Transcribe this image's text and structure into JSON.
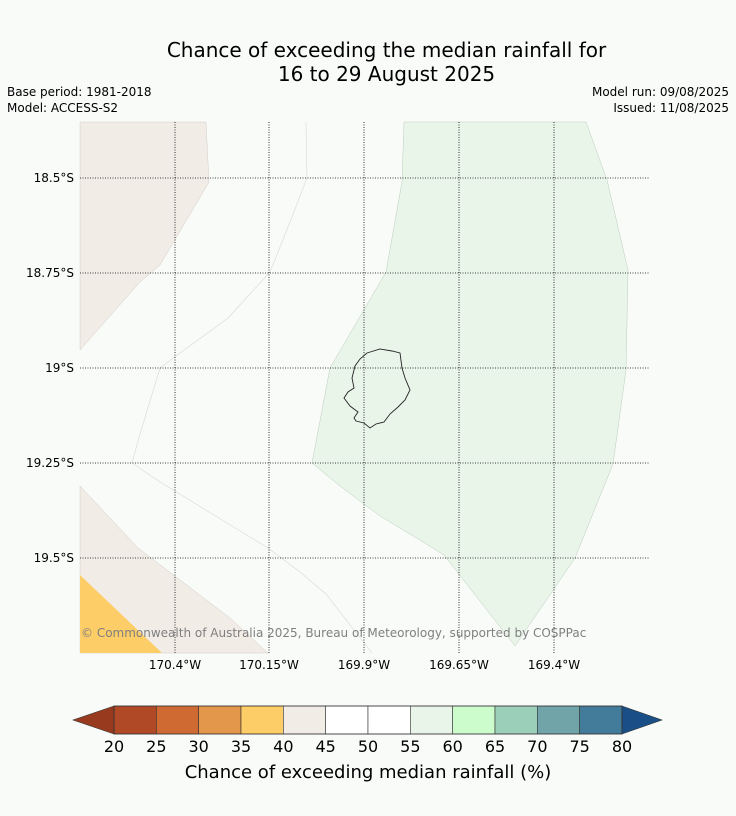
{
  "title_line1": "Chance of exceeding the median rainfall for",
  "title_line2": "16 to 29 August 2025",
  "base_period": "Base period: 1981-2018",
  "model": "Model: ACCESS-S2",
  "model_run": "Model run: 09/08/2025",
  "issued": "Issued: 11/08/2025",
  "latitudes": [
    "18.5°S",
    "18.75°S",
    "19°S",
    "19.25°S",
    "19.5°S"
  ],
  "longitudes": [
    "170.4°W",
    "170.15°W",
    "169.9°W",
    "169.65°W",
    "169.4°W"
  ],
  "copyright": "© Commonwealth of Australia 2025, Bureau of Meteorology, supported by COSPPac",
  "colorbar": {
    "title": "Chance of exceeding median rainfall (%)",
    "ticks": [
      "20",
      "25",
      "30",
      "35",
      "40",
      "45",
      "50",
      "55",
      "60",
      "65",
      "70",
      "75",
      "80"
    ],
    "colors": [
      "#b04a26",
      "#cf6a33",
      "#e3974b",
      "#fdcd67",
      "#f1ece6",
      "#ffffff",
      "#ffffff",
      "#eaf5ea",
      "#ccfbcc",
      "#9ccfb9",
      "#70a4a8",
      "#437b9b"
    ],
    "low_extend_color": "#983a1e",
    "high_extend_color": "#1a4e86"
  },
  "map_colors": {
    "land_brown": "#f1ece6",
    "light_green": "#eaf5ea",
    "orange": "#fdcd67",
    "background": "#f9fbf9"
  }
}
